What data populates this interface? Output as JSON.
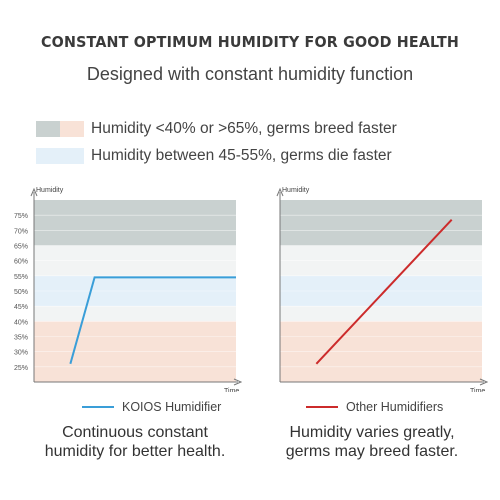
{
  "header": {
    "title": "CONSTANT OPTIMUM HUMIDITY FOR GOOD HEALTH",
    "subtitle": "Designed with constant humidity function"
  },
  "zone_legend": {
    "danger_label": "Humidity <40% or  >65%, germs breed faster",
    "safe_label": "Humidity between 45-55%, germs die faster"
  },
  "colors": {
    "high_zone": "#c9d1d0",
    "low_zone": "#f8e2d7",
    "safe_zone": "#e4f0f9",
    "mid_zone": "#f2f4f4",
    "koios_line": "#3a9ed8",
    "other_line": "#cc2b2b",
    "axis": "#777777"
  },
  "chart_data": [
    {
      "type": "line",
      "xlabel": "Time",
      "ylabel": "Humidity",
      "ylim": [
        20,
        80
      ],
      "y_ticks": [
        "25%",
        "30%",
        "35%",
        "40%",
        "45%",
        "50%",
        "55%",
        "60%",
        "65%",
        "70%",
        "75%"
      ],
      "x_ticks": [],
      "zones": [
        {
          "from": 65,
          "to": 80,
          "kind": "high"
        },
        {
          "from": 55,
          "to": 65,
          "kind": "mid"
        },
        {
          "from": 45,
          "to": 55,
          "kind": "safe"
        },
        {
          "from": 40,
          "to": 45,
          "kind": "mid"
        },
        {
          "from": 20,
          "to": 40,
          "kind": "low"
        }
      ],
      "series": [
        {
          "name": "KOIOS Humidifier",
          "color_key": "koios_line",
          "points": [
            [
              0.18,
              26
            ],
            [
              0.3,
              54.5
            ],
            [
              1.0,
              54.5
            ]
          ]
        }
      ],
      "caption": [
        "Continuous constant",
        "humidity for better health."
      ]
    },
    {
      "type": "line",
      "xlabel": "Time",
      "ylabel": "Humidity",
      "ylim": [
        20,
        80
      ],
      "y_ticks": [],
      "x_ticks": [],
      "zones": [
        {
          "from": 65,
          "to": 80,
          "kind": "high"
        },
        {
          "from": 55,
          "to": 65,
          "kind": "mid"
        },
        {
          "from": 45,
          "to": 55,
          "kind": "safe"
        },
        {
          "from": 40,
          "to": 45,
          "kind": "mid"
        },
        {
          "from": 20,
          "to": 40,
          "kind": "low"
        }
      ],
      "series": [
        {
          "name": "Other Humidifiers",
          "color_key": "other_line",
          "points": [
            [
              0.18,
              26
            ],
            [
              0.85,
              73.5
            ]
          ]
        }
      ],
      "caption": [
        "Humidity varies greatly,",
        "germs may breed faster."
      ]
    }
  ]
}
